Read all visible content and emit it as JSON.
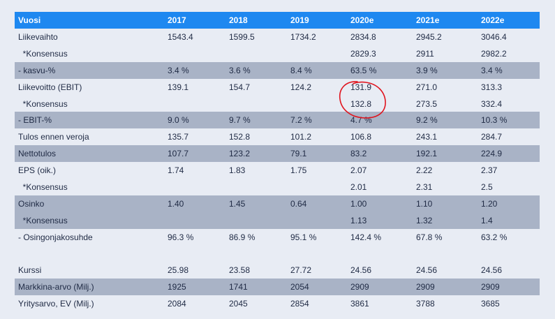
{
  "table": {
    "headers": [
      "Vuosi",
      "2017",
      "2018",
      "2019",
      "2020e",
      "2021e",
      "2022e"
    ],
    "rows": [
      {
        "label": "Liikevaihto",
        "values": [
          "1543.4",
          "1599.5",
          "1734.2",
          "2834.8",
          "2945.2",
          "3046.4"
        ],
        "shaded": false
      },
      {
        "label": "  *Konsensus",
        "values": [
          "",
          "",
          "",
          "2829.3",
          "2911",
          "2982.2"
        ],
        "shaded": false
      },
      {
        "label": "- kasvu-%",
        "values": [
          "3.4 %",
          "3.6 %",
          "8.4 %",
          "63.5 %",
          "3.9 %",
          "3.4 %"
        ],
        "shaded": true
      },
      {
        "label": "Liikevoitto (EBIT)",
        "values": [
          "139.1",
          "154.7",
          "124.2",
          "131.9",
          "271.0",
          "313.3"
        ],
        "shaded": false
      },
      {
        "label": "  *Konsensus",
        "values": [
          "",
          "",
          "",
          "132.8",
          "273.5",
          "332.4"
        ],
        "shaded": false
      },
      {
        "label": "- EBIT-%",
        "values": [
          "9.0 %",
          "9.7 %",
          "7.2 %",
          "4.7 %",
          "9.2 %",
          "10.3 %"
        ],
        "shaded": true
      },
      {
        "label": "Tulos ennen veroja",
        "values": [
          "135.7",
          "152.8",
          "101.2",
          "106.8",
          "243.1",
          "284.7"
        ],
        "shaded": false
      },
      {
        "label": "Nettotulos",
        "values": [
          "107.7",
          "123.2",
          "79.1",
          "83.2",
          "192.1",
          "224.9"
        ],
        "shaded": true
      },
      {
        "label": "EPS (oik.)",
        "values": [
          "1.74",
          "1.83",
          "1.75",
          "2.07",
          "2.22",
          "2.37"
        ],
        "shaded": false
      },
      {
        "label": "  *Konsensus",
        "values": [
          "",
          "",
          "",
          "2.01",
          "2.31",
          "2.5"
        ],
        "shaded": false
      },
      {
        "label": "Osinko",
        "values": [
          "1.40",
          "1.45",
          "0.64",
          "1.00",
          "1.10",
          "1.20"
        ],
        "shaded": true
      },
      {
        "label": "  *Konsensus",
        "values": [
          "",
          "",
          "",
          "1.13",
          "1.32",
          "1.4"
        ],
        "shaded": true
      },
      {
        "label": "- Osingonjakosuhde",
        "values": [
          "96.3 %",
          "86.9 %",
          "95.1 %",
          "142.4 %",
          "67.8 %",
          "63.2 %"
        ],
        "shaded": false
      },
      {
        "label": "",
        "values": [
          "",
          "",
          "",
          "",
          "",
          ""
        ],
        "shaded": false,
        "blank": true
      },
      {
        "label": "Kurssi",
        "values": [
          "25.98",
          "23.58",
          "27.72",
          "24.56",
          "24.56",
          "24.56"
        ],
        "shaded": false
      },
      {
        "label": "Markkina-arvo (Milj.)",
        "values": [
          "1925",
          "1741",
          "2054",
          "2909",
          "2909",
          "2909"
        ],
        "shaded": true
      },
      {
        "label": "Yritysarvo, EV (Milj.)",
        "values": [
          "2084",
          "2045",
          "2854",
          "3861",
          "3788",
          "3685"
        ],
        "shaded": false
      }
    ]
  },
  "annotation": {
    "color": "#e0141e",
    "shape": "hand-drawn-circle"
  }
}
